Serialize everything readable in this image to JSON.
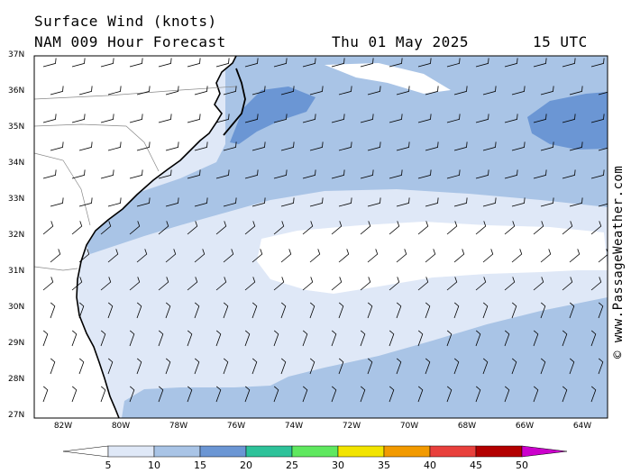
{
  "header": {
    "title": "Surface Wind (knots)",
    "subtitle": "NAM 009 Hour Forecast",
    "date": "Thu 01 May 2025",
    "time": "15 UTC"
  },
  "credit": "© www.PassageWeather.com",
  "latitude_labels": [
    "37N",
    "36N",
    "35N",
    "34N",
    "33N",
    "32N",
    "31N",
    "30N",
    "29N",
    "28N",
    "27N"
  ],
  "longitude_labels": [
    "82W",
    "80W",
    "78W",
    "76W",
    "74W",
    "72W",
    "70W",
    "68W",
    "66W",
    "64W"
  ],
  "colorbar": {
    "labels": [
      "5",
      "10",
      "15",
      "20",
      "25",
      "30",
      "35",
      "40",
      "45",
      "50"
    ],
    "colors": [
      "#ffffff",
      "#dfe8f7",
      "#a9c4e6",
      "#6b96d4",
      "#2ec29a",
      "#5fe85f",
      "#f2e400",
      "#f29a00",
      "#e8403c",
      "#b30000",
      "#cc00cc"
    ]
  },
  "map": {
    "land_color": "#ffffff",
    "sea_colors": {
      "5-10": "#dfe8f7",
      "10-15": "#a9c4e6",
      "15-20": "#6b96d4"
    },
    "region": "US Southeast coast / western Atlantic"
  }
}
